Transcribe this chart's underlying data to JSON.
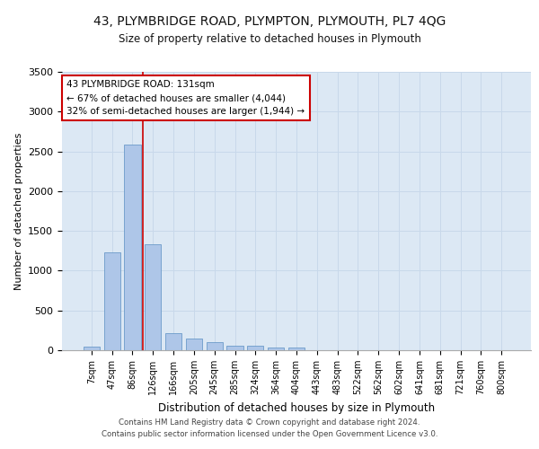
{
  "title": "43, PLYMBRIDGE ROAD, PLYMPTON, PLYMOUTH, PL7 4QG",
  "subtitle": "Size of property relative to detached houses in Plymouth",
  "xlabel": "Distribution of detached houses by size in Plymouth",
  "ylabel": "Number of detached properties",
  "categories": [
    "7sqm",
    "47sqm",
    "86sqm",
    "126sqm",
    "166sqm",
    "205sqm",
    "245sqm",
    "285sqm",
    "324sqm",
    "364sqm",
    "404sqm",
    "443sqm",
    "483sqm",
    "522sqm",
    "562sqm",
    "602sqm",
    "641sqm",
    "681sqm",
    "721sqm",
    "760sqm",
    "800sqm"
  ],
  "values": [
    50,
    1230,
    2590,
    1330,
    210,
    150,
    100,
    55,
    55,
    30,
    30,
    0,
    0,
    0,
    0,
    0,
    0,
    0,
    0,
    0,
    0
  ],
  "bar_color": "#aec6e8",
  "bar_edge_color": "#5a8fc2",
  "grid_color": "#c8d8ea",
  "background_color": "#dce8f4",
  "annotation_box_text": "43 PLYMBRIDGE ROAD: 131sqm\n← 67% of detached houses are smaller (4,044)\n32% of semi-detached houses are larger (1,944) →",
  "annotation_box_edge_color": "#cc0000",
  "vline_x": 2.5,
  "vline_color": "#cc0000",
  "ylim": [
    0,
    3500
  ],
  "yticks": [
    0,
    500,
    1000,
    1500,
    2000,
    2500,
    3000,
    3500
  ],
  "footer_line1": "Contains HM Land Registry data © Crown copyright and database right 2024.",
  "footer_line2": "Contains public sector information licensed under the Open Government Licence v3.0."
}
